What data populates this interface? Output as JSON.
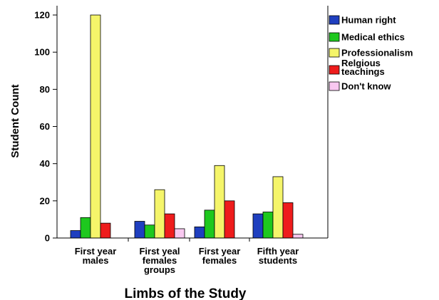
{
  "chart_data": {
    "type": "bar",
    "xlabel": "Limbs of the Study",
    "ylabel": "Student Count",
    "ylim": [
      0,
      125
    ],
    "yticks": [
      0,
      20,
      40,
      60,
      80,
      100,
      120
    ],
    "grid": false,
    "legend_position": "right",
    "categories": [
      [
        "First year",
        "males"
      ],
      [
        "First yeal",
        "females",
        "groups"
      ],
      [
        "First year",
        "females"
      ],
      [
        "Fifth year",
        "students"
      ]
    ],
    "series": [
      {
        "name": "Human right",
        "color": "#1f3fbf",
        "values": [
          4,
          9,
          6,
          13
        ]
      },
      {
        "name": "Medical ethics",
        "color": "#1ec81e",
        "values": [
          11,
          7,
          15,
          14
        ]
      },
      {
        "name": "Professionalism",
        "color": "#f5f56a",
        "values": [
          120,
          26,
          39,
          33
        ]
      },
      {
        "name": [
          "Relgious",
          "teachings"
        ],
        "color": "#ee1c1c",
        "values": [
          8,
          13,
          20,
          19
        ]
      },
      {
        "name": "Don't know",
        "color": "#f8c8f0",
        "values": [
          null,
          5,
          null,
          2
        ]
      }
    ]
  }
}
